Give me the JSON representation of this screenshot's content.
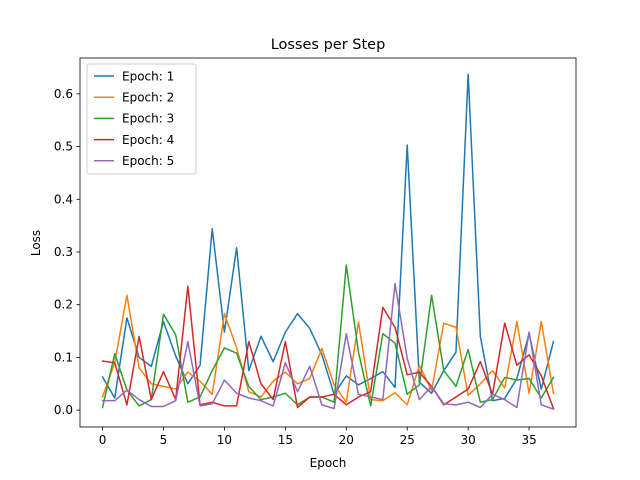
{
  "chart_data": {
    "type": "line",
    "title": "Losses per Step",
    "xlabel": "Epoch",
    "ylabel": "Loss",
    "xlim": [
      -1.85,
      38.85
    ],
    "ylim": [
      -0.032,
      0.668
    ],
    "xticks": [
      0,
      5,
      10,
      15,
      20,
      25,
      30,
      35
    ],
    "yticks": [
      0.0,
      0.1,
      0.2,
      0.3,
      0.4,
      0.5,
      0.6
    ],
    "grid": false,
    "legend_position": "upper-left",
    "series": [
      {
        "name": "Epoch: 1",
        "color": "#1f77b4",
        "values": [
          0.063,
          0.023,
          0.175,
          0.1,
          0.083,
          0.168,
          0.103,
          0.05,
          0.085,
          0.344,
          0.148,
          0.308,
          0.075,
          0.14,
          0.092,
          0.148,
          0.183,
          0.155,
          0.105,
          0.03,
          0.065,
          0.048,
          0.06,
          0.073,
          0.043,
          0.503,
          0.053,
          0.032,
          0.075,
          0.11,
          0.637,
          0.14,
          0.018,
          0.022,
          0.06,
          0.145,
          0.04,
          0.13
        ]
      },
      {
        "name": "Epoch: 2",
        "color": "#ff7f0e",
        "values": [
          0.025,
          0.09,
          0.218,
          0.08,
          0.05,
          0.045,
          0.04,
          0.072,
          0.055,
          0.03,
          0.183,
          0.118,
          0.035,
          0.025,
          0.055,
          0.072,
          0.05,
          0.06,
          0.117,
          0.048,
          0.015,
          0.167,
          0.02,
          0.018,
          0.033,
          0.01,
          0.085,
          0.037,
          0.165,
          0.157,
          0.028,
          0.05,
          0.075,
          0.042,
          0.168,
          0.032,
          0.168,
          0.032
        ]
      },
      {
        "name": "Epoch: 3",
        "color": "#2ca02c",
        "values": [
          0.005,
          0.107,
          0.038,
          0.008,
          0.02,
          0.182,
          0.143,
          0.015,
          0.025,
          0.075,
          0.118,
          0.108,
          0.045,
          0.02,
          0.025,
          0.032,
          0.01,
          0.025,
          0.025,
          0.015,
          0.275,
          0.11,
          0.008,
          0.145,
          0.127,
          0.03,
          0.048,
          0.218,
          0.075,
          0.045,
          0.115,
          0.015,
          0.02,
          0.062,
          0.057,
          0.06,
          0.023,
          0.062
        ]
      },
      {
        "name": "Epoch: 4",
        "color": "#d62728",
        "values": [
          0.093,
          0.09,
          0.01,
          0.14,
          0.02,
          0.073,
          0.02,
          0.235,
          0.01,
          0.015,
          0.008,
          0.008,
          0.13,
          0.05,
          0.02,
          0.13,
          0.005,
          0.025,
          0.025,
          0.03,
          0.01,
          0.025,
          0.035,
          0.195,
          0.157,
          0.067,
          0.072,
          0.045,
          0.01,
          0.025,
          0.04,
          0.092,
          0.03,
          0.165,
          0.085,
          0.105,
          0.065,
          0.003
        ]
      },
      {
        "name": "Epoch: 5",
        "color": "#9467bd",
        "values": [
          0.018,
          0.018,
          0.038,
          0.02,
          0.007,
          0.007,
          0.018,
          0.13,
          0.008,
          0.012,
          0.057,
          0.032,
          0.023,
          0.018,
          0.008,
          0.09,
          0.035,
          0.083,
          0.01,
          0.003,
          0.145,
          0.03,
          0.025,
          0.02,
          0.24,
          0.098,
          0.02,
          0.045,
          0.012,
          0.01,
          0.015,
          0.005,
          0.03,
          0.02,
          0.005,
          0.148,
          0.01,
          0.002
        ]
      }
    ]
  }
}
